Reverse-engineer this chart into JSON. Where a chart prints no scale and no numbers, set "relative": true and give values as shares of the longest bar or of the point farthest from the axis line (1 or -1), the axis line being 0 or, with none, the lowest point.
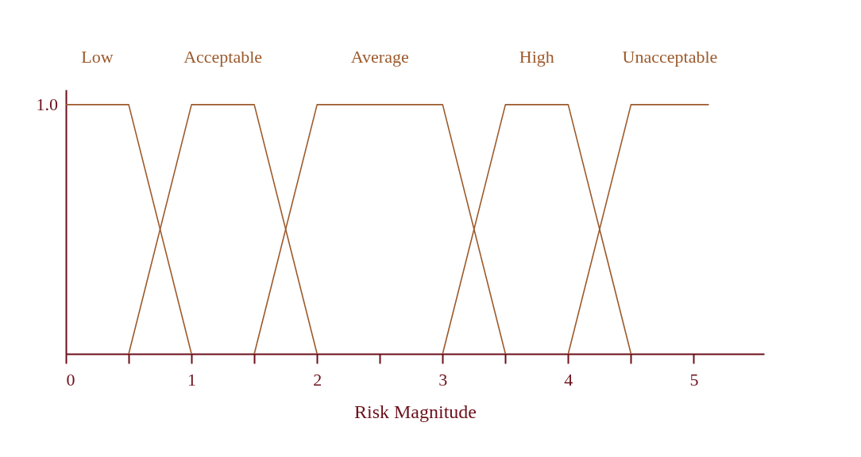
{
  "chart_data": {
    "type": "line",
    "xlabel": "Risk Magnitude",
    "xlim": [
      0,
      5.56
    ],
    "relative": true,
    "annotations": [
      "1.0"
    ],
    "xticks": [
      0,
      {
        "value": 0.5,
        "label": null
      },
      1,
      {
        "value": 1.5,
        "label": null
      },
      2,
      {
        "value": 2.5,
        "label": null
      },
      3,
      {
        "value": 3.5,
        "label": null
      },
      4,
      {
        "value": 4.5,
        "label": null
      },
      5
    ],
    "grid": false,
    "legend": false,
    "marker": "none",
    "line_style": "solid",
    "series": [
      {
        "name": "Low",
        "color": "#9c5a2c",
        "x": [
          0,
          0.5,
          1
        ],
        "values": [
          1,
          1,
          0
        ]
      },
      {
        "name": "Acceptable",
        "color": "#9c5a2c",
        "x": [
          0.5,
          1,
          1.5,
          2
        ],
        "values": [
          0,
          1,
          1,
          0
        ]
      },
      {
        "name": "Average",
        "color": "#9c5a2c",
        "x": [
          1.5,
          2,
          3,
          3.5
        ],
        "values": [
          0,
          1,
          1,
          0
        ]
      },
      {
        "name": "High",
        "color": "#9c5a2c",
        "x": [
          3,
          3.5,
          4,
          4.5
        ],
        "values": [
          0,
          1,
          1,
          0
        ]
      },
      {
        "name": "Unacceptable",
        "color": "#9c5a2c",
        "x": [
          4,
          4.5,
          5.12
        ],
        "values": [
          0,
          1,
          1
        ]
      }
    ]
  }
}
